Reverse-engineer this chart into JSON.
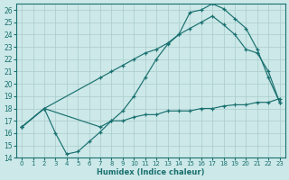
{
  "xlabel": "Humidex (Indice chaleur)",
  "bg_color": "#cce8e8",
  "grid_color": "#aacccc",
  "line_color": "#1a7070",
  "xlim": [
    -0.5,
    23.5
  ],
  "ylim": [
    14,
    26.5
  ],
  "xticks": [
    0,
    1,
    2,
    3,
    4,
    5,
    6,
    7,
    8,
    9,
    10,
    11,
    12,
    13,
    14,
    15,
    16,
    17,
    18,
    19,
    20,
    21,
    22,
    23
  ],
  "yticks": [
    14,
    15,
    16,
    17,
    18,
    19,
    20,
    21,
    22,
    23,
    24,
    25,
    26
  ],
  "curve1_x": [
    0,
    2,
    3,
    4,
    5,
    6,
    7,
    8,
    9,
    10,
    11,
    12,
    13,
    14,
    15,
    16,
    17,
    18,
    19,
    20,
    21,
    22,
    23
  ],
  "curve1_y": [
    16.5,
    18.0,
    16.0,
    14.3,
    14.5,
    15.3,
    16.1,
    17.0,
    17.8,
    19.0,
    20.5,
    22.0,
    23.2,
    24.0,
    25.8,
    26.0,
    26.5,
    26.1,
    25.3,
    24.5,
    22.8,
    20.5,
    18.5
  ],
  "curve2_x": [
    0,
    2,
    7,
    8,
    9,
    10,
    11,
    12,
    13,
    14,
    15,
    16,
    17,
    18,
    19,
    20,
    21,
    22,
    23
  ],
  "curve2_y": [
    16.5,
    18.0,
    20.5,
    21.0,
    21.5,
    22.0,
    22.5,
    22.8,
    23.3,
    24.0,
    24.5,
    25.0,
    25.5,
    24.8,
    24.0,
    22.8,
    22.5,
    21.0,
    18.5
  ],
  "curve3_x": [
    0,
    2,
    7,
    8,
    9,
    10,
    11,
    12,
    13,
    14,
    15,
    16,
    17,
    18,
    19,
    20,
    21,
    22,
    23
  ],
  "curve3_y": [
    16.5,
    18.0,
    16.5,
    17.0,
    17.0,
    17.3,
    17.5,
    17.5,
    17.8,
    17.8,
    17.8,
    18.0,
    18.0,
    18.2,
    18.3,
    18.3,
    18.5,
    18.5,
    18.8
  ]
}
